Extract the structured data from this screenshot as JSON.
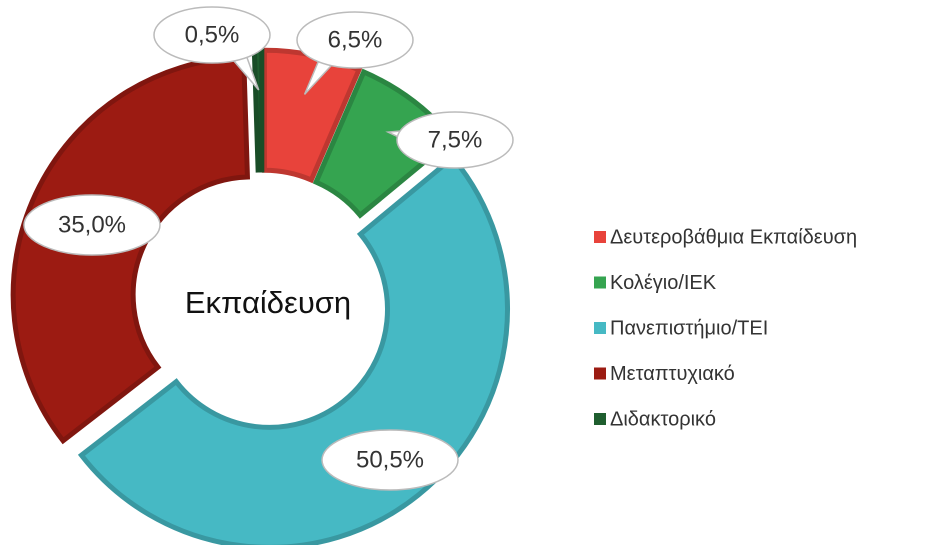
{
  "chart_data": {
    "type": "donut",
    "title": "Εκπαίδευση",
    "categories": [
      "Δευτεροβάθμια Εκπαίδευση",
      "Κολέγιο/ΙΕΚ",
      "Πανεπιστήμιο/ΤΕΙ",
      "Μεταπτυχιακό",
      "Διδακτορικό"
    ],
    "values": [
      6.5,
      7.5,
      50.5,
      35.0,
      0.5
    ],
    "value_labels": [
      "6,5%",
      "7,5%",
      "50,5%",
      "35,0%",
      "0,5%"
    ],
    "colors": [
      "#e8433b",
      "#35a450",
      "#46b9c4",
      "#9c1b12",
      "#1f5e2f"
    ],
    "legend": "right"
  }
}
